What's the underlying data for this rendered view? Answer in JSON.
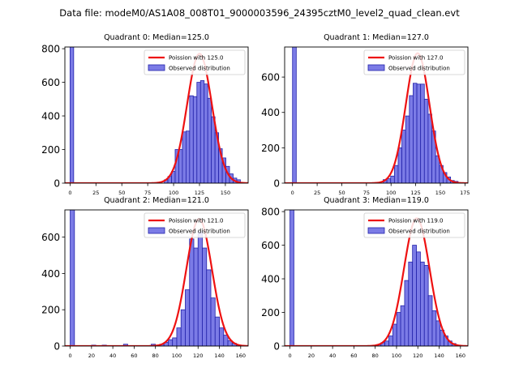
{
  "suptitle": "Data file: modeM0/AS1A08_008T01_9000003596_24395cztM0_level2_quad_clean.evt",
  "colors": {
    "fit": "#ee1111",
    "hist_fill": "#7b7be6",
    "hist_edge": "#2222aa"
  },
  "chart_data": [
    {
      "type": "bar",
      "title": "Quadrant 0: Median=125.0",
      "xlim": [
        -5,
        172
      ],
      "ylim": [
        0,
        810
      ],
      "xticks": [
        0,
        25,
        50,
        75,
        100,
        125,
        150
      ],
      "yticks": [
        0,
        200,
        400,
        600,
        800
      ],
      "legend": [
        "Poission with 125.0",
        "Observed distribution"
      ],
      "legend_position": "upper right",
      "bin_width": 3.5,
      "histogram": {
        "bin_starts": [
          0,
          91,
          94.5,
          98,
          101.5,
          105,
          108.5,
          112,
          115.5,
          119,
          122.5,
          126,
          129.5,
          133,
          136.5,
          140,
          143.5,
          147,
          150.5,
          154,
          157.5,
          161
        ],
        "counts": [
          810,
          20,
          40,
          70,
          200,
          200,
          305,
          310,
          520,
          515,
          600,
          610,
          590,
          505,
          395,
          300,
          205,
          150,
          100,
          55,
          30,
          20
        ]
      },
      "fit": {
        "label": "Poission with 125.0",
        "mean": 125.0,
        "peak": 770,
        "sigma": 12
      }
    },
    {
      "type": "bar",
      "title": "Quadrant 1: Median=127.0",
      "xlim": [
        -8,
        178
      ],
      "ylim": [
        0,
        770
      ],
      "xticks": [
        0,
        25,
        50,
        75,
        100,
        125,
        150,
        175
      ],
      "yticks": [
        0,
        200,
        400,
        600
      ],
      "legend": [
        "Poission with 127.0",
        "Observed distribution"
      ],
      "legend_position": "upper right",
      "bin_width": 3.8,
      "histogram": {
        "bin_starts": [
          0,
          92,
          95.8,
          99.6,
          103.4,
          107.2,
          111,
          114.8,
          118.6,
          122.4,
          126.2,
          130,
          133.8,
          137.6,
          141.4,
          145.2,
          149,
          152.8,
          156.6,
          160.4,
          164.2
        ],
        "counts": [
          770,
          20,
          25,
          40,
          100,
          200,
          300,
          380,
          495,
          565,
          560,
          560,
          475,
          390,
          295,
          155,
          100,
          60,
          35,
          15,
          10
        ]
      },
      "fit": {
        "label": "Poission with 127.0",
        "mean": 127.0,
        "peak": 735,
        "sigma": 12
      }
    },
    {
      "type": "bar",
      "title": "Quadrant 2: Median=121.0",
      "xlim": [
        -5,
        167
      ],
      "ylim": [
        0,
        750
      ],
      "xticks": [
        0,
        20,
        40,
        60,
        80,
        100,
        120,
        140,
        160
      ],
      "yticks": [
        0,
        200,
        400,
        600
      ],
      "legend": [
        "Poission with 121.0",
        "Observed distribution"
      ],
      "legend_position": "upper right",
      "bin_width": 4,
      "histogram": {
        "bin_starts": [
          0,
          20,
          30,
          50,
          76,
          84,
          88,
          92,
          96,
          100,
          104,
          108,
          112,
          116,
          120,
          124,
          128,
          132,
          136,
          140,
          144,
          148,
          152,
          156
        ],
        "counts": [
          750,
          5,
          5,
          10,
          10,
          10,
          20,
          35,
          45,
          100,
          200,
          310,
          590,
          540,
          630,
          540,
          420,
          265,
          160,
          100,
          60,
          30,
          15,
          5
        ]
      },
      "fit": {
        "label": "Poission with 121.0",
        "mean": 121.0,
        "peak": 700,
        "sigma": 12
      }
    },
    {
      "type": "bar",
      "title": "Quadrant 3: Median=119.0",
      "xlim": [
        -5,
        167
      ],
      "ylim": [
        0,
        810
      ],
      "xticks": [
        0,
        20,
        40,
        60,
        80,
        100,
        120,
        140,
        160
      ],
      "yticks": [
        0,
        200,
        400,
        600,
        800
      ],
      "legend": [
        "Poission with 119.0",
        "Observed distribution"
      ],
      "legend_position": "upper right",
      "bin_width": 3.7,
      "histogram": {
        "bin_starts": [
          0,
          78,
          81.7,
          85.4,
          89.1,
          92.8,
          96.5,
          100.2,
          103.9,
          107.6,
          111.3,
          115,
          118.7,
          122.4,
          126.1,
          129.8,
          133.5,
          137.2,
          140.9,
          144.6,
          148.3,
          152,
          155.7
        ],
        "counts": [
          810,
          5,
          10,
          20,
          30,
          60,
          130,
          200,
          240,
          390,
          500,
          600,
          560,
          500,
          480,
          300,
          210,
          150,
          95,
          60,
          30,
          15,
          5
        ]
      },
      "fit": {
        "label": "Poission with 119.0",
        "mean": 119.0,
        "peak": 760,
        "sigma": 12
      }
    }
  ]
}
